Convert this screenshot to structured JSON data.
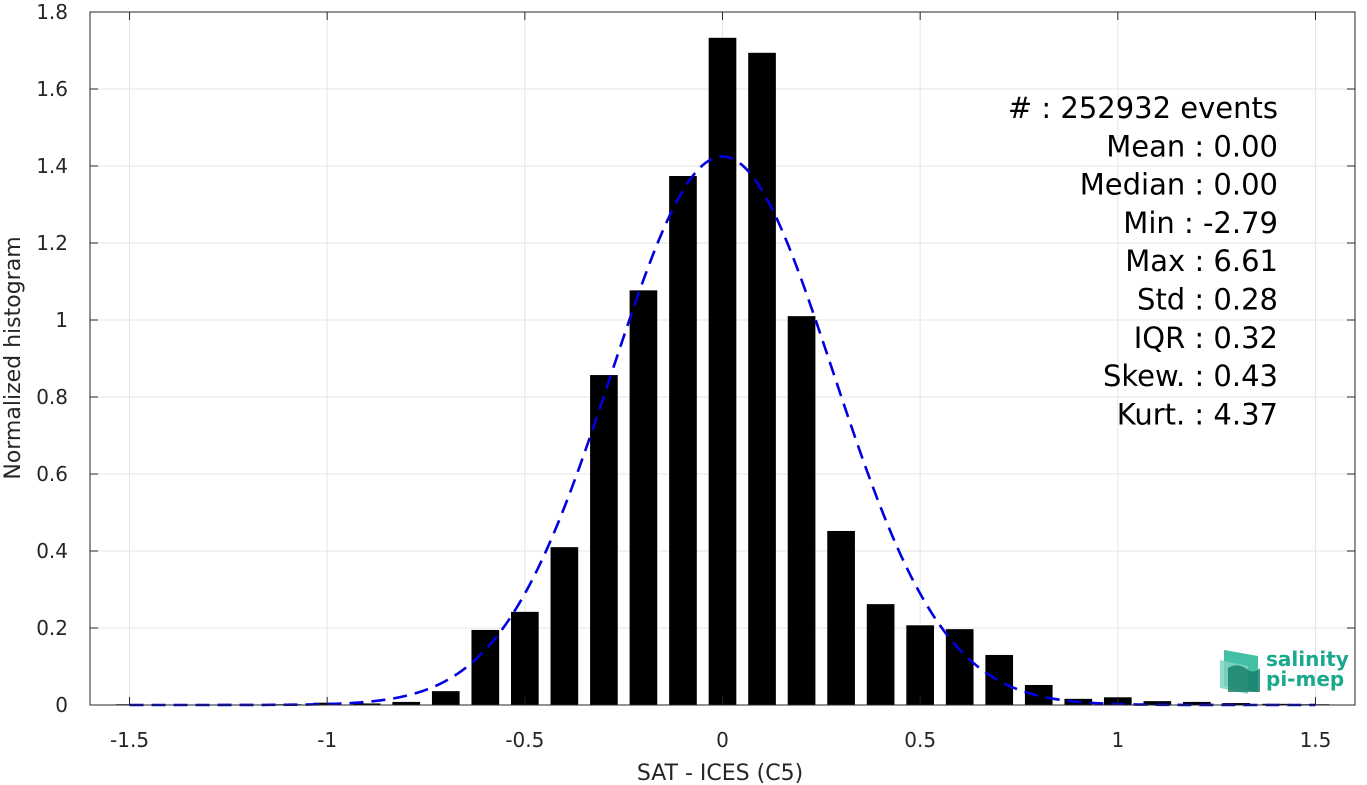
{
  "chart_data": {
    "type": "bar",
    "xlabel": "SAT - ICES (C5)",
    "ylabel": "Normalized histogram",
    "xlim": [
      -1.6,
      1.6
    ],
    "ylim": [
      0,
      1.8
    ],
    "grid": true,
    "x_ticks": [
      -1.5,
      -1,
      -0.5,
      0,
      0.5,
      1,
      1.5
    ],
    "x_tick_labels": [
      "-1.5",
      "-1",
      "-0.5",
      "0",
      "0.5",
      "1",
      "1.5"
    ],
    "y_ticks": [
      0,
      0.2,
      0.4,
      0.6,
      0.8,
      1,
      1.2,
      1.4,
      1.6,
      1.8
    ],
    "y_tick_labels": [
      "0",
      "0.2",
      "0.4",
      "0.6",
      "0.8",
      "1",
      "1.2",
      "1.4",
      "1.6",
      "1.8"
    ],
    "bar_color": "#000000",
    "bar_width": 0.07,
    "bars": {
      "x": [
        -1.5,
        -1.4,
        -1.3,
        -1.2,
        -1.1,
        -1.0,
        -0.9,
        -0.8,
        -0.7,
        -0.6,
        -0.5,
        -0.4,
        -0.3,
        -0.2,
        -0.1,
        0.0,
        0.1,
        0.2,
        0.3,
        0.4,
        0.5,
        0.6,
        0.7,
        0.8,
        0.9,
        1.0,
        1.1,
        1.2,
        1.3,
        1.4,
        1.5
      ],
      "values": [
        0.002,
        0.001,
        0.001,
        0.001,
        0.002,
        0.006,
        0.004,
        0.008,
        0.036,
        0.195,
        0.242,
        0.41,
        0.857,
        1.077,
        1.374,
        1.733,
        1.694,
        1.01,
        0.452,
        0.262,
        0.207,
        0.197,
        0.13,
        0.052,
        0.016,
        0.02,
        0.01,
        0.008,
        0.005,
        0.003,
        0.002
      ]
    },
    "fit_curve": {
      "style": "dashed",
      "color": "#0000e0",
      "mean": 0.0,
      "std": 0.28
    },
    "stats": [
      "#  : 252932 events",
      "Mean : 0.00",
      "Median : 0.00",
      "Min : -2.79",
      "Max : 6.61",
      "Std : 0.28",
      "IQR : 0.32",
      "Skew. : 0.43",
      "Kurt. : 4.37"
    ]
  },
  "logo": {
    "line1": "salinity",
    "line2": "pi-mep",
    "color": "#1aa88e"
  }
}
